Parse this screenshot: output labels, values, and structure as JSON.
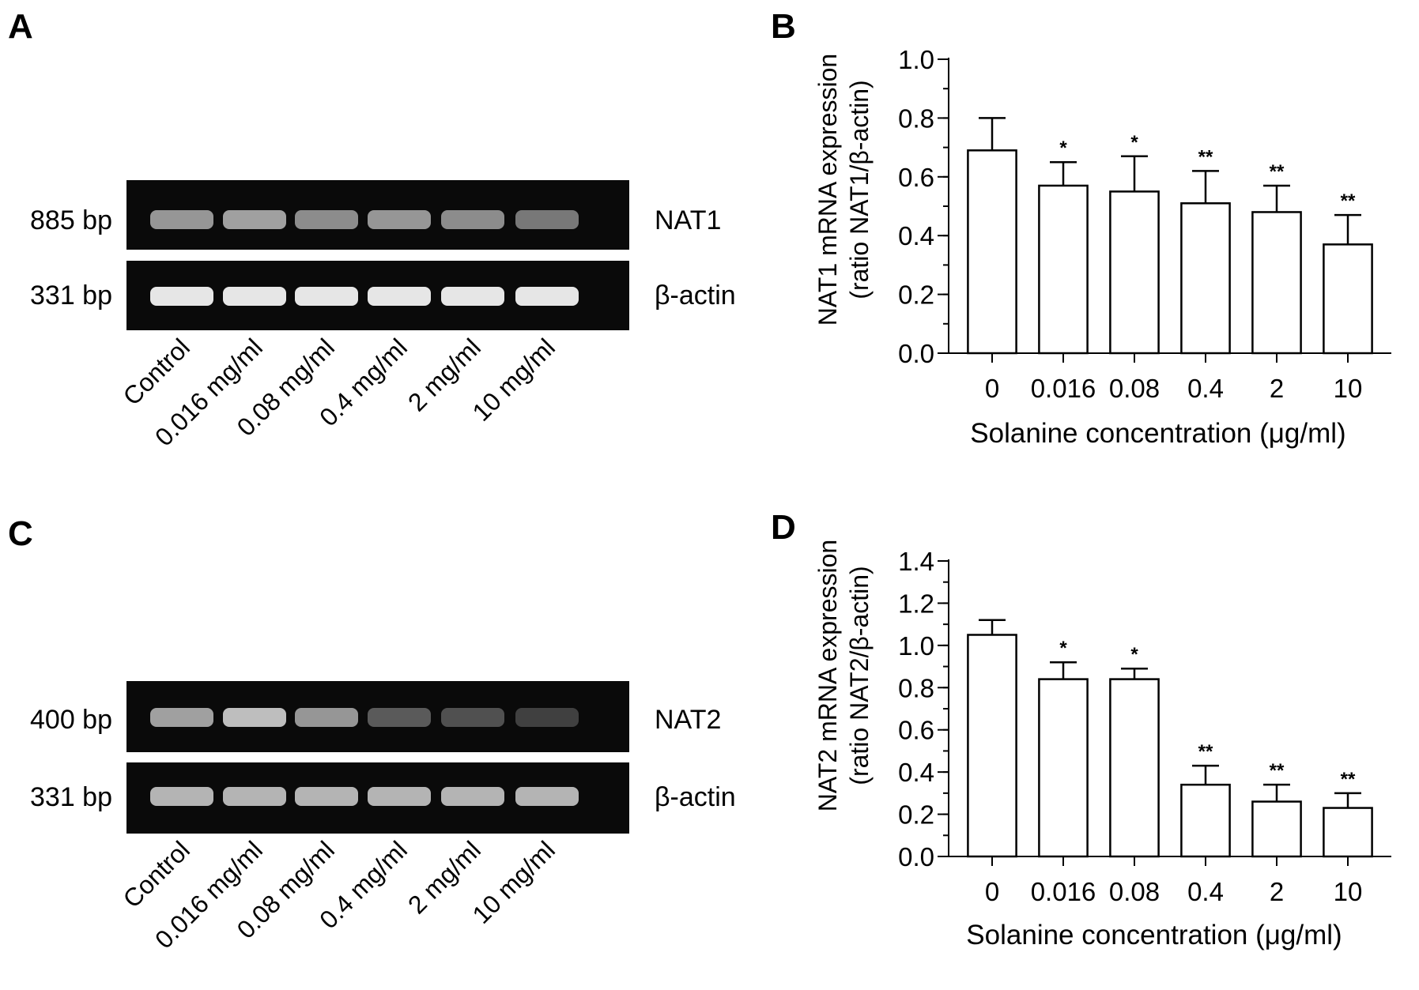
{
  "panels": {
    "A": {
      "letter": "A",
      "gels": [
        {
          "size_label": "885 bp",
          "gene": "NAT1",
          "band_intensity": [
            0.55,
            0.6,
            0.5,
            0.55,
            0.5,
            0.4
          ]
        },
        {
          "size_label": "331 bp",
          "gene": "β-actin",
          "band_intensity": [
            0.95,
            0.95,
            0.95,
            0.95,
            0.95,
            0.95
          ]
        }
      ],
      "lanes": [
        "Control",
        "0.016 mg/ml",
        "0.08 mg/ml",
        "0.4 mg/ml",
        "2 mg/ml",
        "10 mg/ml"
      ]
    },
    "C": {
      "letter": "C",
      "gels": [
        {
          "size_label": "400 bp",
          "gene": "NAT2",
          "band_intensity": [
            0.6,
            0.75,
            0.55,
            0.25,
            0.2,
            0.12
          ]
        },
        {
          "size_label": "331 bp",
          "gene": "β-actin",
          "band_intensity": [
            0.7,
            0.7,
            0.7,
            0.7,
            0.7,
            0.7
          ]
        }
      ],
      "lanes": [
        "Control",
        "0.016 mg/ml",
        "0.08  mg/ml",
        "0.4  mg/ml",
        "2 mg/ml",
        "10 mg/ml"
      ]
    },
    "B": {
      "letter": "B"
    },
    "D": {
      "letter": "D"
    }
  },
  "chart_data": [
    {
      "type": "bar",
      "panel": "B",
      "categories": [
        "0",
        "0.016",
        "0.08",
        "0.4",
        "2",
        "10"
      ],
      "values": [
        0.69,
        0.57,
        0.55,
        0.51,
        0.48,
        0.37
      ],
      "errors": [
        0.11,
        0.08,
        0.12,
        0.11,
        0.09,
        0.1
      ],
      "significance": [
        "",
        "*",
        "*",
        "**",
        "**",
        "**"
      ],
      "ylabel_line1": "NAT1 mRNA expression",
      "ylabel_line2": "(ratio NAT1/β-actin)",
      "xlabel": "Solanine concentration (μg/ml)",
      "ylim": [
        0,
        1.0
      ],
      "yticks": [
        "0.0",
        "0.2",
        "0.4",
        "0.6",
        "0.8",
        "1.0"
      ],
      "ytick_values": [
        0,
        0.2,
        0.4,
        0.6,
        0.8,
        1.0
      ],
      "minor_step": 0.1,
      "grid": false
    },
    {
      "type": "bar",
      "panel": "D",
      "categories": [
        "0",
        "0.016",
        "0.08",
        "0.4",
        "2",
        "10"
      ],
      "values": [
        1.05,
        0.84,
        0.84,
        0.34,
        0.26,
        0.23
      ],
      "errors": [
        0.07,
        0.08,
        0.05,
        0.09,
        0.08,
        0.07
      ],
      "significance": [
        "",
        "*",
        "*",
        "**",
        "**",
        "**"
      ],
      "ylabel_line1": "NAT2 mRNA expression",
      "ylabel_line2": "(ratio NAT2/β-actin)",
      "xlabel": "Solanine concentration (μg/ml)",
      "ylim": [
        0,
        1.4
      ],
      "yticks": [
        "0.0",
        "0.2",
        "0.4",
        "0.6",
        "0.8",
        "1.0",
        "1.2",
        "1.4"
      ],
      "ytick_values": [
        0,
        0.2,
        0.4,
        0.6,
        0.8,
        1.0,
        1.2,
        1.4
      ],
      "minor_step": 0.1,
      "grid": false
    }
  ]
}
